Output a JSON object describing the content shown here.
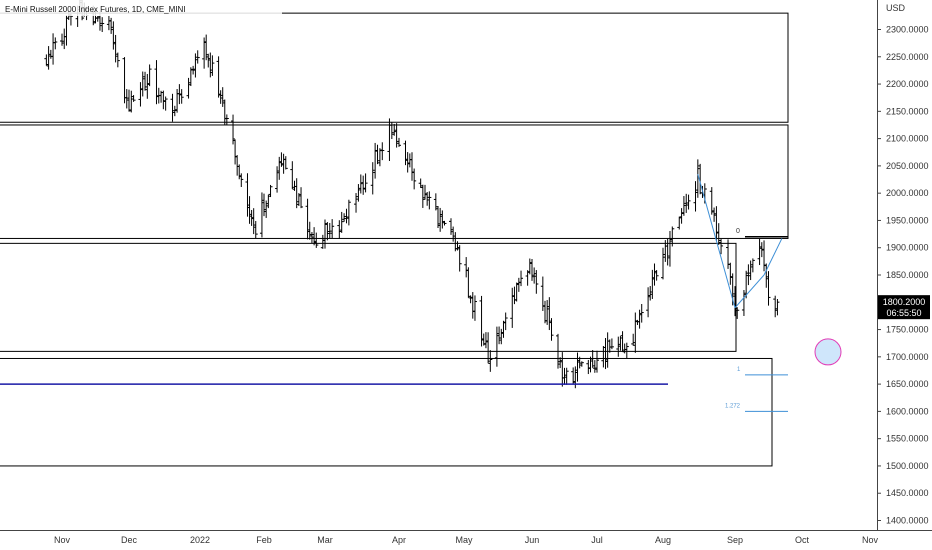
{
  "header": {
    "symbol_title": "E-Mini Russell 2000 Index Futures, 1D, CME_MINI",
    "currency": "USD"
  },
  "price_axis": {
    "labels": [
      "2300.0000",
      "2250.0000",
      "2200.0000",
      "2150.0000",
      "2100.0000",
      "2050.0000",
      "2000.0000",
      "1950.0000",
      "1900.0000",
      "1850.0000",
      "1800.0000",
      "1750.0000",
      "1700.0000",
      "1650.0000",
      "1600.0000",
      "1550.0000",
      "1500.0000",
      "1450.0000",
      "1400.0000"
    ],
    "values": [
      2300,
      2250,
      2200,
      2150,
      2100,
      2050,
      2000,
      1950,
      1900,
      1850,
      1800,
      1750,
      1700,
      1650,
      1600,
      1550,
      1500,
      1450,
      1400
    ]
  },
  "time_axis": {
    "labels": [
      "Nov",
      "Dec",
      "2022",
      "Feb",
      "Mar",
      "Apr",
      "May",
      "Jun",
      "Jul",
      "Aug",
      "Sep",
      "Oct",
      "Nov"
    ]
  },
  "last_price": {
    "price": "1800.2000",
    "countdown": "06:55:50",
    "value": 1800.2,
    "bg_color": "#000000"
  },
  "fib_labels": {
    "zero": "0",
    "one": "1",
    "ext": "1.272"
  },
  "colors": {
    "bars": "#000000",
    "box_border": "#000000",
    "blue_line": "#1a1aa6",
    "fib_line": "#3d8fd6",
    "fib_text": "#5b9bd5",
    "circle": "#e23bb6",
    "circle_fill": "#cfe6fb"
  },
  "chart_data": {
    "type": "ohlc",
    "title": "E-Mini Russell 2000 Index Futures, 1D, CME_MINI",
    "ylabel": "USD",
    "ylim": [
      1380,
      2345
    ],
    "x_ticks": [
      "Nov",
      "Dec",
      "2022",
      "Feb",
      "Mar",
      "Apr",
      "May",
      "Jun",
      "Jul",
      "Aug",
      "Sep",
      "Oct",
      "Nov"
    ],
    "last_value": 1800.2,
    "close_path": [
      [
        "Oct 25, 2021",
        2250
      ],
      [
        "Nov 8, 2021",
        2340
      ],
      [
        "Nov 22, 2021",
        2300
      ],
      [
        "Dec 1, 2021",
        2160
      ],
      [
        "Dec 10, 2021",
        2210
      ],
      [
        "Dec 20, 2021",
        2150
      ],
      [
        "Jan 3, 2022",
        2270
      ],
      [
        "Jan 12, 2022",
        2160
      ],
      [
        "Jan 27, 2022",
        1930
      ],
      [
        "Feb 9, 2022",
        2070
      ],
      [
        "Feb 24, 2022",
        1910
      ],
      [
        "Mar 8, 2022",
        1950
      ],
      [
        "Mar 29, 2022",
        2120
      ],
      [
        "Apr 11, 2022",
        2000
      ],
      [
        "Apr 28, 2022",
        1900
      ],
      [
        "May 12, 2022",
        1700
      ],
      [
        "May 31, 2022",
        1880
      ],
      [
        "Jun 16, 2022",
        1660
      ],
      [
        "Jul 1, 2022",
        1700
      ],
      [
        "Jul 18, 2022",
        1740
      ],
      [
        "Aug 1, 2022",
        1880
      ],
      [
        "Aug 16, 2022",
        2030
      ],
      [
        "Aug 29, 2022",
        1870
      ],
      [
        "Sep 1, 2022",
        1790
      ],
      [
        "Sep 12, 2022",
        1910
      ],
      [
        "Sep 16, 2022",
        1815
      ],
      [
        "Sep 20, 2022",
        1800.2
      ]
    ],
    "zones": [
      {
        "top": 2330,
        "bottom": 2130
      },
      {
        "top": 2125,
        "bottom": 1917
      },
      {
        "top": 1908,
        "bottom": 1710
      },
      {
        "top": 1697,
        "bottom": 1500
      }
    ],
    "horizontal_lines": [
      {
        "price": 1650
      }
    ],
    "fib_levels": [
      {
        "label": "0",
        "price": 1920
      },
      {
        "label": "1",
        "price": 1667
      },
      {
        "label": "1.272",
        "price": 1600
      }
    ]
  }
}
